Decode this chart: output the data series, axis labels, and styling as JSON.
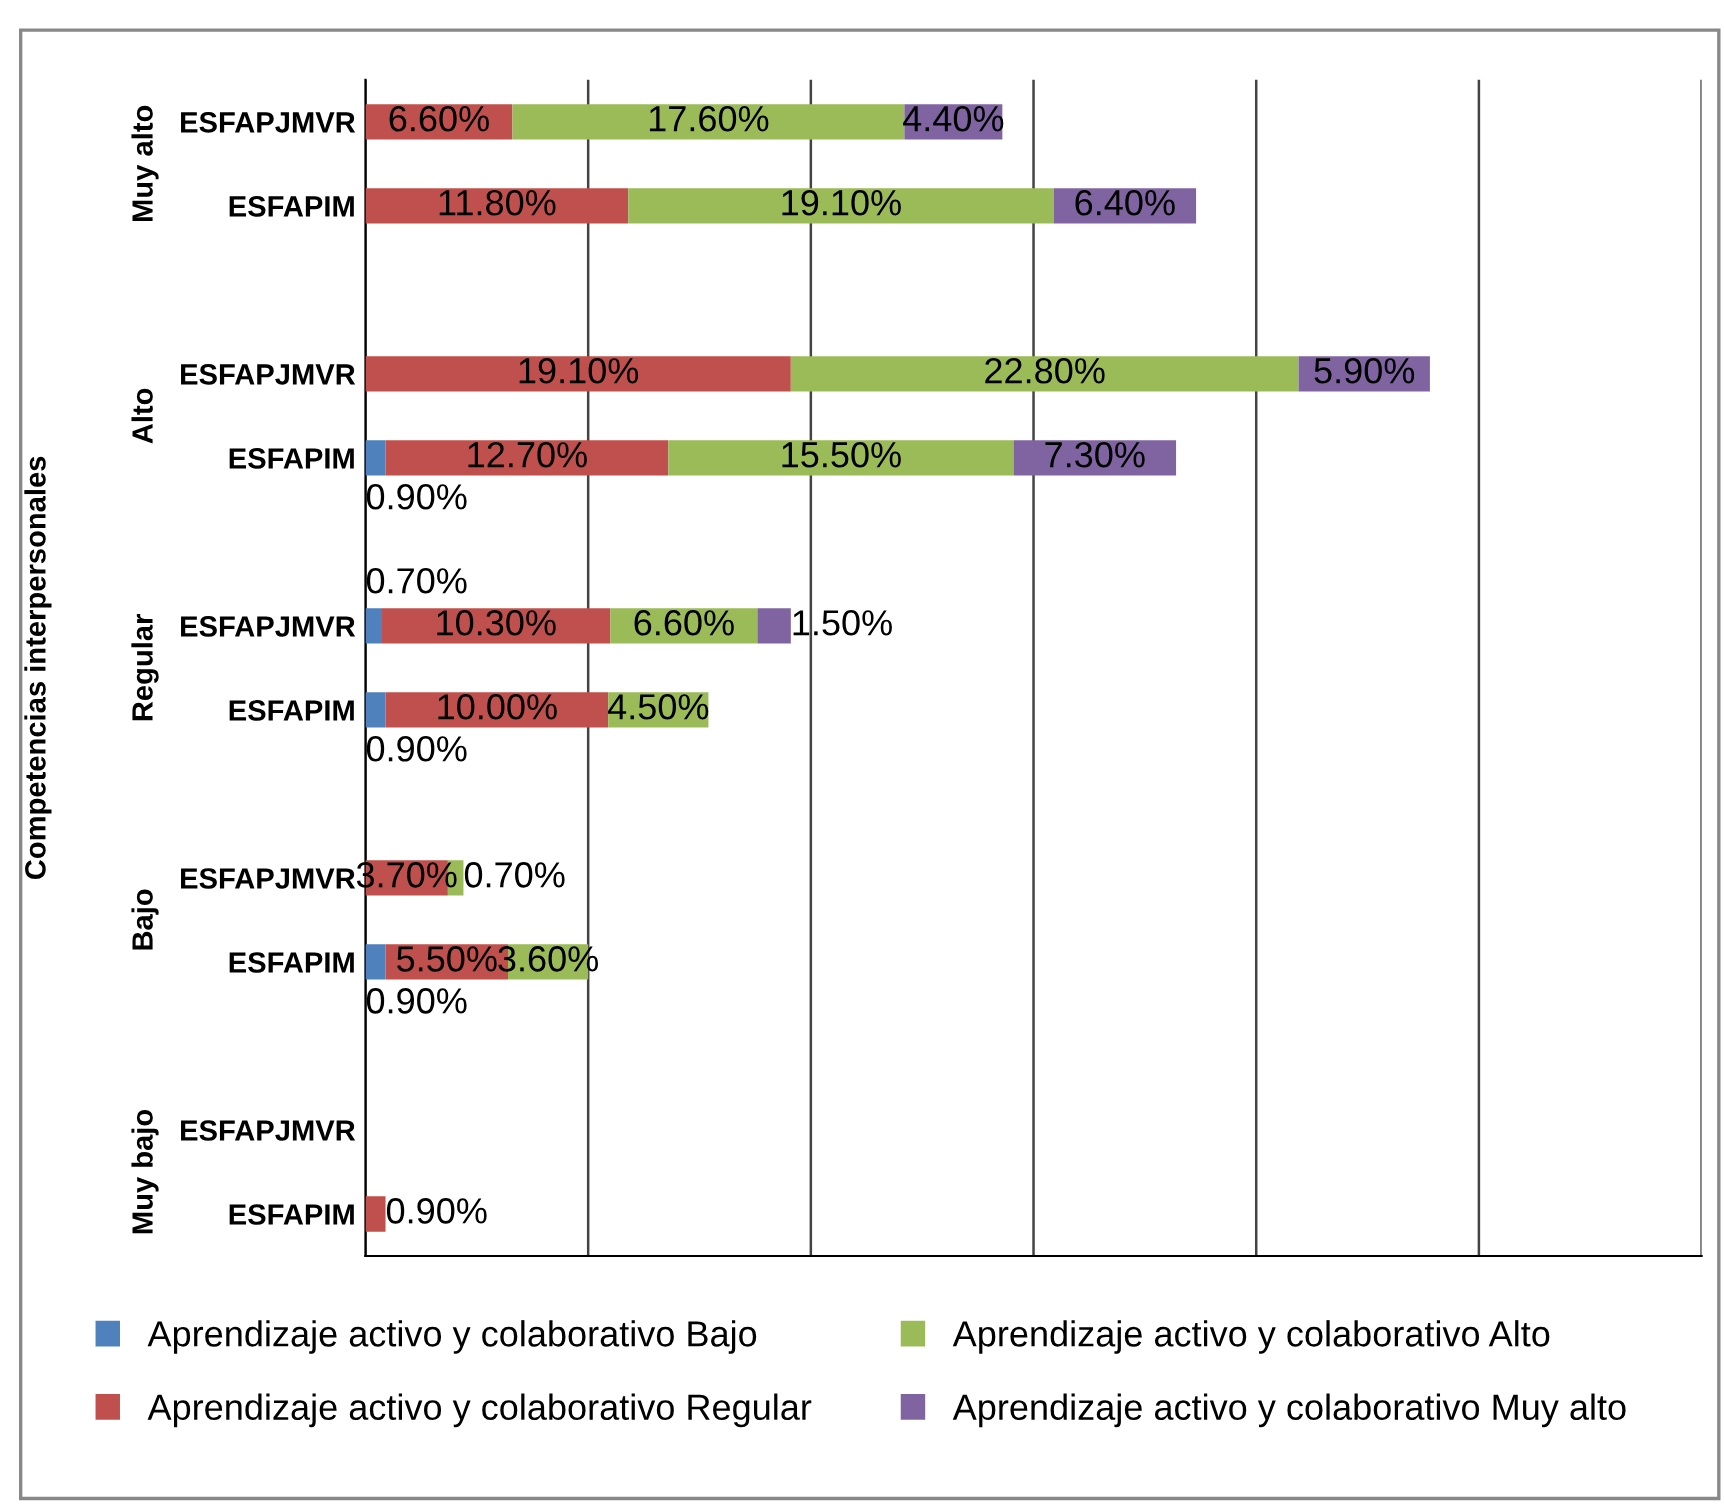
{
  "chart_data": {
    "type": "bar",
    "orientation": "horizontal",
    "stacked": true,
    "ylabel": "Competencias interpersonales",
    "categories": [
      "ESFAPJMVR",
      "ESFAPIM",
      "ESFAPJMVR",
      "ESFAPIM",
      "ESFAPJMVR",
      "ESFAPIM",
      "ESFAPJMVR",
      "ESFAPIM",
      "ESFAPJMVR",
      "ESFAPIM"
    ],
    "annotations": [
      "Muy alto",
      "Alto",
      "Regular",
      "Bajo",
      "Muy bajo"
    ],
    "series": [
      {
        "name": "Aprendizaje activo y colaborativo Bajo",
        "color": "#4f81bd",
        "values": [
          null,
          null,
          null,
          0.9,
          0.7,
          0.9,
          null,
          0.9,
          null,
          null
        ],
        "value_labels": [
          null,
          null,
          null,
          "0.90%",
          "0.70%",
          "0.90%",
          null,
          "0.90%",
          null,
          null
        ]
      },
      {
        "name": "Aprendizaje activo y colaborativo Regular",
        "color": "#c0504d",
        "values": [
          6.6,
          11.8,
          19.1,
          12.7,
          10.3,
          10.0,
          3.7,
          5.5,
          null,
          0.9
        ],
        "value_labels": [
          "6.60%",
          "11.80%",
          "19.10%",
          "12.70%",
          "10.30%",
          "10.00%",
          "3.70%",
          "5.50%",
          null,
          "0.90%"
        ]
      },
      {
        "name": "Aprendizaje activo y colaborativo Alto",
        "color": "#9bbb59",
        "values": [
          17.6,
          19.1,
          22.8,
          15.5,
          6.6,
          4.5,
          0.7,
          3.6,
          null,
          null
        ],
        "value_labels": [
          "17.60%",
          "19.10%",
          "22.80%",
          "15.50%",
          "6.60%",
          "4.50%",
          "0.70%",
          "3.60%",
          null,
          null
        ]
      },
      {
        "name": "Aprendizaje activo y colaborativo Muy alto",
        "color": "#8064a2",
        "values": [
          4.4,
          6.4,
          5.9,
          7.3,
          1.5,
          null,
          null,
          null,
          null,
          null
        ],
        "value_labels": [
          "4.40%",
          "6.40%",
          "5.90%",
          "7.30%",
          "1.50%",
          null,
          null,
          null,
          null,
          null
        ]
      }
    ],
    "xlim": [
      0,
      60
    ],
    "xticks": [
      {
        "value": 0,
        "label": null
      },
      {
        "value": 10,
        "label": null
      },
      {
        "value": 20,
        "label": null
      },
      {
        "value": 30,
        "label": null
      },
      {
        "value": 40,
        "label": null
      },
      {
        "value": 50,
        "label": null
      },
      {
        "value": 60,
        "label": null
      }
    ],
    "tick_labels": "y",
    "grid": "x",
    "legend": "bottom"
  }
}
